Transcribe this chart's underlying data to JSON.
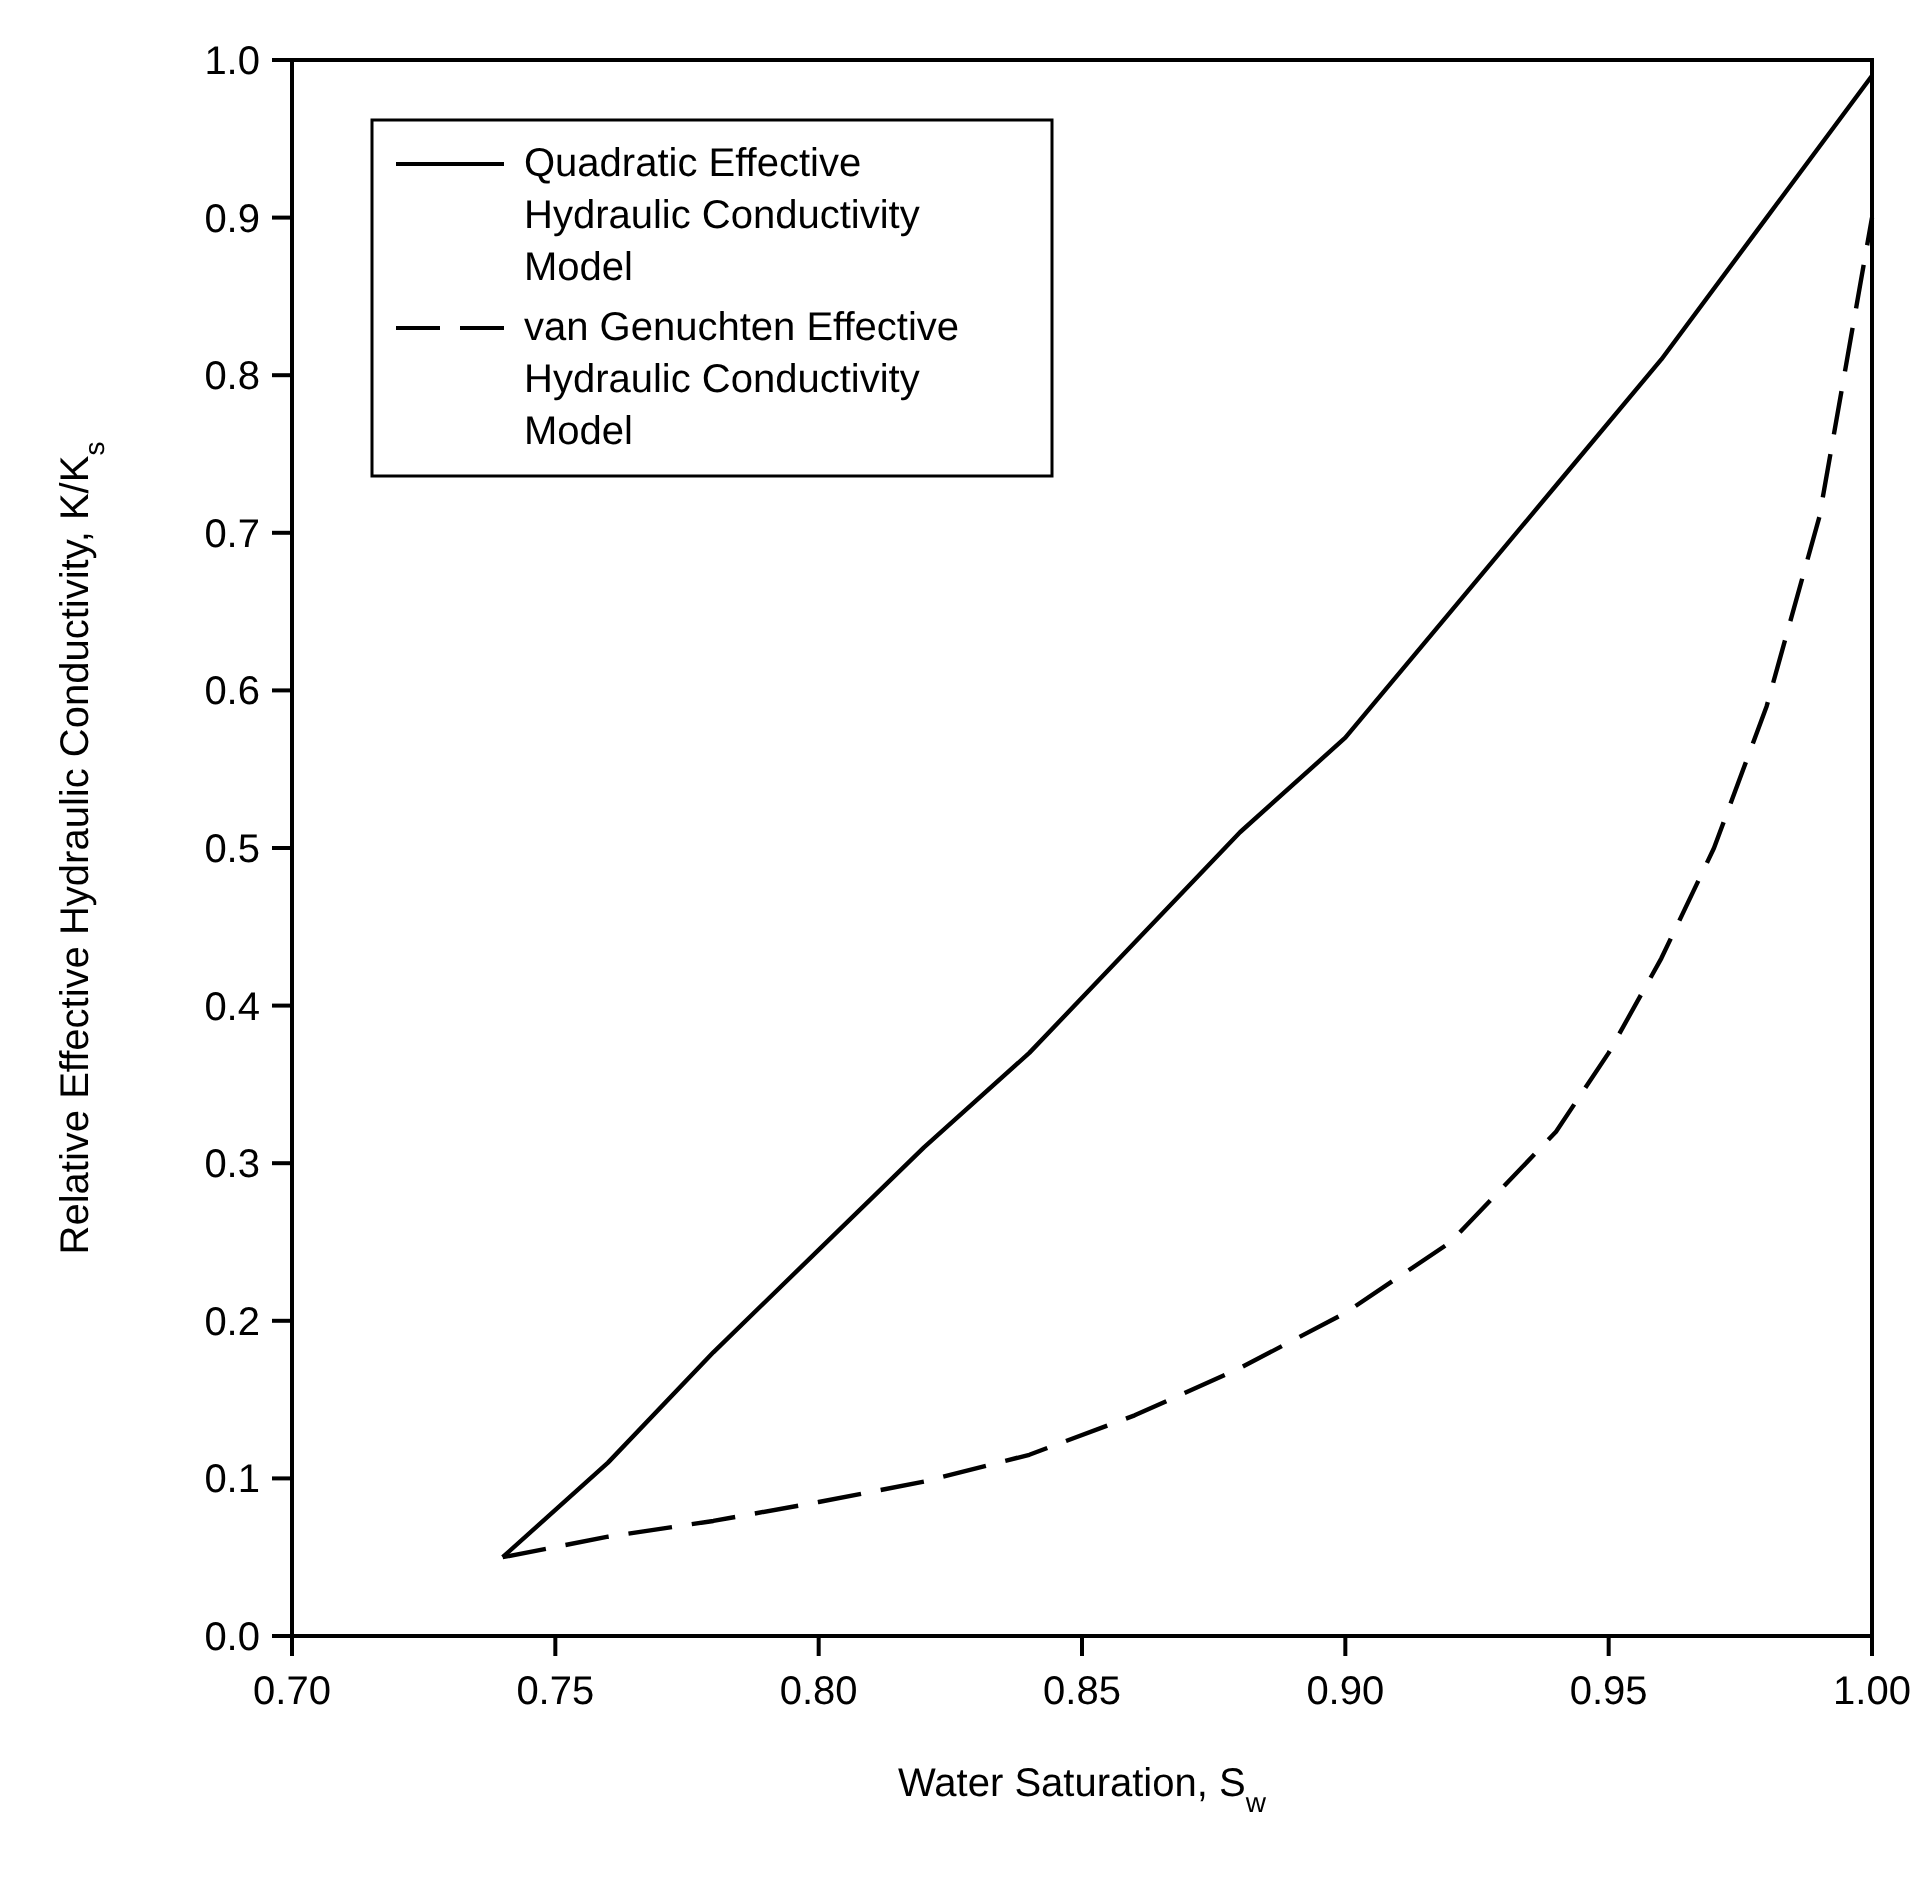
{
  "chart_data": {
    "type": "line",
    "xlabel": "Water Saturation, S$_{w}$",
    "ylabel": "Relative Effective Hydraulic Conductivity, K/K$_{s}$",
    "xlim": [
      0.7,
      1.0
    ],
    "xticks": [
      {
        "value": 0.7,
        "label": "0.70"
      },
      {
        "value": 0.75,
        "label": "0.75"
      },
      {
        "value": 0.8,
        "label": "0.80"
      },
      {
        "value": 0.85,
        "label": "0.85"
      },
      {
        "value": 0.9,
        "label": "0.90"
      },
      {
        "value": 0.95,
        "label": "0.95"
      },
      {
        "value": 1.0,
        "label": "1.00"
      }
    ],
    "ylim": [
      0,
      1
    ],
    "yticks": [
      {
        "value": 0,
        "label": "0.0"
      },
      0.1,
      0.2,
      0.3,
      0.4,
      0.5,
      0.6,
      0.7,
      0.8,
      0.9,
      {
        "value": 1,
        "label": "1.0"
      }
    ],
    "legend": "top left",
    "grid": false,
    "series": [
      {
        "name": "Quadratic Effective Hydraulic Conductivity Model",
        "color": "#000000",
        "line_style": "solid",
        "x": [
          0.74,
          0.76,
          0.78,
          0.8,
          0.82,
          0.84,
          0.86,
          0.88,
          0.9,
          0.92,
          0.94,
          0.96,
          0.98,
          1.0
        ],
        "values": [
          0.05,
          0.11,
          0.18,
          0.245,
          0.31,
          0.37,
          0.44,
          0.51,
          0.57,
          0.65,
          0.73,
          0.81,
          0.9,
          0.99
        ]
      },
      {
        "name": "van Genuchten Effective Hydraulic Conductivity Model",
        "color": "#000000",
        "line_style": "dashed",
        "x": [
          0.74,
          0.76,
          0.78,
          0.8,
          0.82,
          0.84,
          0.86,
          0.88,
          0.9,
          0.92,
          0.94,
          0.95,
          0.96,
          0.97,
          0.98,
          0.99,
          1.0
        ],
        "values": [
          0.05,
          0.063,
          0.073,
          0.085,
          0.098,
          0.115,
          0.14,
          0.17,
          0.205,
          0.25,
          0.32,
          0.37,
          0.43,
          0.5,
          0.59,
          0.71,
          0.9
        ]
      }
    ]
  }
}
